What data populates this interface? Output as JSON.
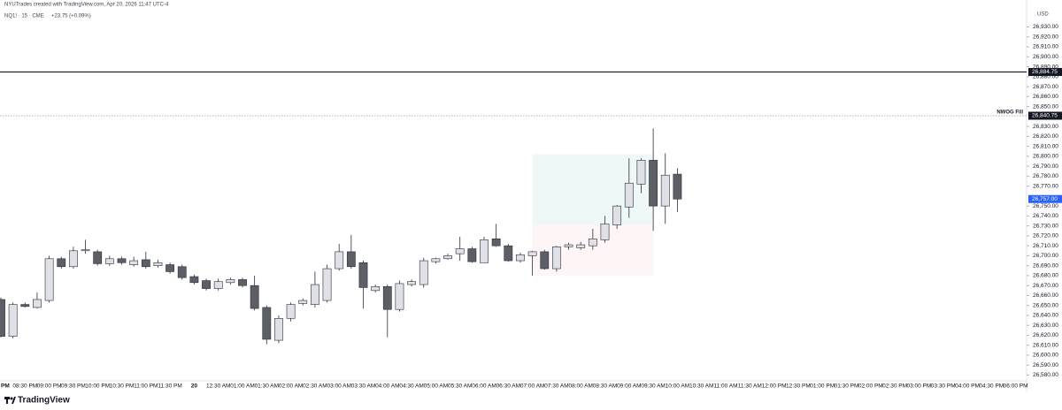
{
  "chart_data": {
    "type": "candlestick",
    "attribution": "NYUTrades created with TradingView.com, Apr 20, 2026 11:47 UTC-4",
    "title": "NQ1! · 15 · CME",
    "subtitle": "+23.75 (+0.09%)",
    "currency": "USD",
    "brand": "TradingView",
    "up_color": "#dfe1e6",
    "down_color": "#5d5f67",
    "border_color": "#2a2e39",
    "categories": [
      "PM",
      null,
      "08:30 PM",
      null,
      "09:00 PM",
      null,
      "09:30 PM",
      null,
      "10:00 PM",
      null,
      "10:30 PM",
      null,
      "11:00 PM",
      null,
      "11:30 PM",
      null,
      "20",
      null,
      "12:30 AM",
      null,
      "01:00 AM",
      null,
      "01:30 AM",
      null,
      "02:00 AM",
      null,
      "02:30 AM",
      null,
      "03:00 AM",
      null,
      "03:30 AM",
      null,
      "04:00 AM",
      null,
      "04:30 AM",
      null,
      "05:00 AM",
      null,
      "05:30 AM",
      null,
      "06:00 AM",
      null,
      "06:30 AM",
      null,
      "07:00 AM",
      null,
      "07:30 AM",
      null,
      "08:00 AM",
      null,
      "08:30 AM",
      null,
      "09:00 AM",
      null,
      "09:30 AM",
      null,
      "10:00 AM",
      null,
      "10:30 AM",
      null,
      "11:00 AM",
      null,
      "11:30 AM",
      null,
      "12:00 PM",
      null,
      "12:30 PM",
      null,
      "01:00 PM",
      null,
      "01:30 PM",
      null,
      "02:00 PM",
      null,
      "02:30 PM",
      null,
      "03:00 PM",
      null,
      "03:30 PM",
      null,
      "04:00 PM",
      null,
      "04:30 PM",
      null,
      "06:00 PM"
    ],
    "open": [
      26656,
      26619,
      26651,
      26648,
      26655,
      26697,
      26689,
      26705,
      26704,
      26692,
      26697,
      26691,
      26696,
      26690,
      26691,
      26689,
      26679,
      26675,
      26667,
      26673,
      26676,
      26670,
      26648,
      26615,
      26637,
      26652,
      26651,
      26655,
      26687,
      26704,
      26693,
      26665,
      26669,
      26646,
      26671,
      26671,
      26694,
      26697,
      26702,
      26707,
      26693,
      26717,
      26710,
      26695,
      26700,
      26704,
      26687,
      26709,
      26708,
      26710,
      26716,
      26731,
      26749,
      26772,
      26796,
      26750,
      26782,
      null,
      null,
      null,
      null,
      null,
      null,
      null,
      null,
      null,
      null,
      null,
      null,
      null,
      null,
      null,
      null,
      null,
      null,
      null,
      null,
      null,
      null,
      null,
      null,
      null,
      null,
      null,
      null
    ],
    "high": [
      26658,
      26653,
      26653,
      26663,
      26700,
      26699,
      26709,
      26716,
      26706,
      26700,
      26699,
      26699,
      26704,
      26696,
      26693,
      26691,
      26681,
      26677,
      26677,
      26678,
      26678,
      26680,
      26650,
      26640,
      26653,
      26657,
      26684,
      26691,
      26712,
      26721,
      26695,
      26671,
      26671,
      26675,
      26676,
      26698,
      26698,
      26702,
      26719,
      26709,
      26719,
      26732,
      26712,
      26703,
      26705,
      26706,
      26710,
      26713,
      26714,
      26727,
      26740,
      26751,
      26798,
      26798,
      26828,
      26803,
      26788,
      null,
      null,
      null,
      null,
      null,
      null,
      null,
      null,
      null,
      null,
      null,
      null,
      null,
      null,
      null,
      null,
      null,
      null,
      null,
      null,
      null,
      null,
      null,
      null,
      null,
      null,
      null,
      null
    ],
    "low": [
      26618,
      26617,
      26648,
      26647,
      26653,
      26687,
      26687,
      26702,
      26690,
      26690,
      26691,
      26689,
      26687,
      26688,
      26682,
      26676,
      26671,
      26665,
      26665,
      26671,
      26668,
      26645,
      26611,
      26612,
      26634,
      26650,
      26648,
      26653,
      26685,
      26687,
      26647,
      26663,
      26618,
      26644,
      26669,
      26668,
      26692,
      26696,
      26695,
      26693,
      26693,
      26709,
      26694,
      26693,
      26680,
      26686,
      26684,
      26706,
      26706,
      26706,
      26713,
      26727,
      26738,
      26763,
      26725,
      26732,
      26744,
      null,
      null,
      null,
      null,
      null,
      null,
      null,
      null,
      null,
      null,
      null,
      null,
      null,
      null,
      null,
      null,
      null,
      null,
      null,
      null,
      null,
      null,
      null,
      null,
      null,
      null,
      null,
      null
    ],
    "close": [
      26619,
      26651,
      26649,
      26656,
      26697,
      26689,
      26705,
      26706,
      26692,
      26697,
      26693,
      26695,
      26689,
      26693,
      26684,
      26678,
      26673,
      26667,
      26674,
      26676,
      26670,
      26647,
      26616,
      26637,
      26651,
      26655,
      26671,
      26687,
      26704,
      26689,
      26668,
      26669,
      26646,
      26672,
      26674,
      26695,
      26697,
      26700,
      26707,
      26694,
      26716,
      26710,
      26695,
      26701,
      26704,
      26687,
      26709,
      26711,
      26711,
      26717,
      26732,
      26750,
      26773,
      26796,
      26750,
      26781,
      26757,
      null,
      null,
      null,
      null,
      null,
      null,
      null,
      null,
      null,
      null,
      null,
      null,
      null,
      null,
      null,
      null,
      null,
      null,
      null,
      null,
      null,
      null,
      null,
      null,
      null,
      null,
      null,
      null
    ],
    "ylim": [
      26568,
      26950
    ],
    "yticks": [
      {
        "value": 26580,
        "label": "26,580.00"
      },
      {
        "value": 26590,
        "label": "26,590.00"
      },
      {
        "value": 26600,
        "label": "26,600.00"
      },
      {
        "value": 26610,
        "label": "26,610.00"
      },
      {
        "value": 26620,
        "label": "26,620.00"
      },
      {
        "value": 26630,
        "label": "26,630.00"
      },
      {
        "value": 26640,
        "label": "26,640.00"
      },
      {
        "value": 26650,
        "label": "26,650.00"
      },
      {
        "value": 26660,
        "label": "26,660.00"
      },
      {
        "value": 26670,
        "label": "26,670.00"
      },
      {
        "value": 26680,
        "label": "26,680.00"
      },
      {
        "value": 26690,
        "label": "26,690.00"
      },
      {
        "value": 26700,
        "label": "26,700.00"
      },
      {
        "value": 26710,
        "label": "26,710.00"
      },
      {
        "value": 26720,
        "label": "26,720.00"
      },
      {
        "value": 26730,
        "label": "26,730.00"
      },
      {
        "value": 26740,
        "label": "26,740.00"
      },
      {
        "value": 26750,
        "label": "26,750.00"
      },
      {
        "value": 26770,
        "label": "26,770.00"
      },
      {
        "value": 26780,
        "label": "26,780.00"
      },
      {
        "value": 26790,
        "label": "26,790.00"
      },
      {
        "value": 26800,
        "label": "26,800.00"
      },
      {
        "value": 26810,
        "label": "26,810.00"
      },
      {
        "value": 26820,
        "label": "26,820.00"
      },
      {
        "value": 26830,
        "label": "26,830.00"
      },
      {
        "value": 26850,
        "label": "26,850.00"
      },
      {
        "value": 26860,
        "label": "26,860.00"
      },
      {
        "value": 26870,
        "label": "26,870.00"
      },
      {
        "value": 26880,
        "label": "26,880.00"
      },
      {
        "value": 26890,
        "label": "26,890.00"
      },
      {
        "value": 26900,
        "label": "26,900.00"
      },
      {
        "value": 26910,
        "label": "26,910.00"
      },
      {
        "value": 26920,
        "label": "26,920.00"
      },
      {
        "value": 26930,
        "label": "26,930.00"
      }
    ],
    "grid": false,
    "lines": [
      {
        "value": 26884.75,
        "label": "26,884.75",
        "style": "solid"
      },
      {
        "name": "NWOG Fill",
        "value": 26840.75,
        "label": "26,840.75",
        "style": "dotted"
      }
    ],
    "last_price": {
      "value": 26757,
      "label": "26,757.00",
      "color": "#2962ff"
    },
    "position": {
      "from": "07:00 AM",
      "to": "09:30 AM",
      "target": 26802,
      "entry": 26731,
      "stop": 26680
    }
  }
}
